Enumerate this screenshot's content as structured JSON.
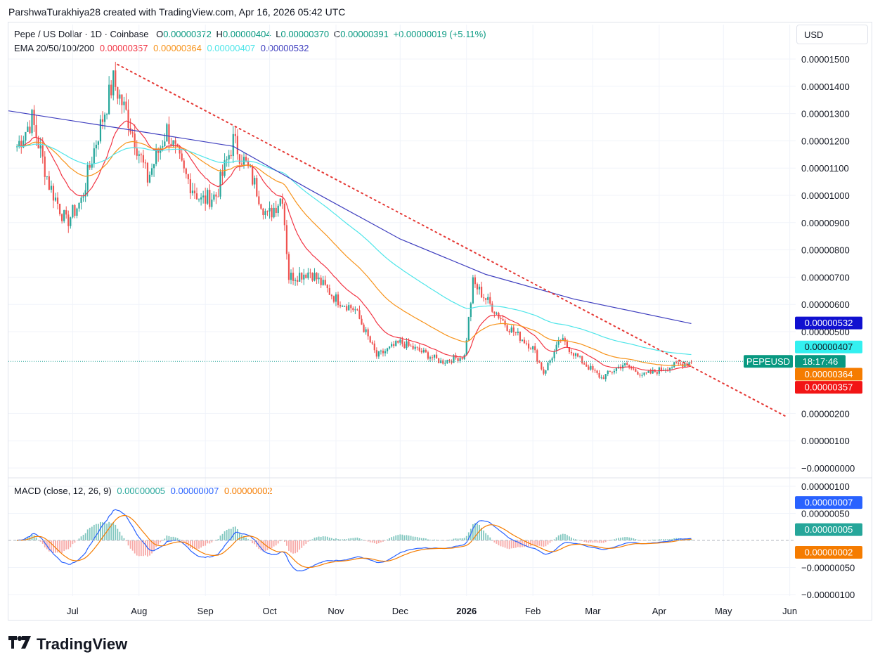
{
  "header": {
    "attribution": "ParshwaTurakhiya28 created with TradingView.com, Apr 16, 2026 05:42 UTC"
  },
  "legend": {
    "symbol": "Pepe / US Dollar · 1D · Coinbase",
    "o_label": "O",
    "o_value": "0.00000372",
    "h_label": "H",
    "h_value": "0.00000404",
    "l_label": "L",
    "l_value": "0.00000370",
    "c_label": "C",
    "c_value": "0.00000391",
    "change": "+0.00000019 (+5.11%)",
    "ema_label": "EMA 20/50/100/200",
    "ema20": "0.00000357",
    "ema50": "0.00000364",
    "ema100": "0.00000407",
    "ema200": "0.00000532",
    "macd_label": "MACD (close, 12, 26, 9)",
    "macd_hist": "0.00000005",
    "macd_line": "0.00000007",
    "macd_signal": "0.00000002"
  },
  "currency": "USD",
  "symbol_tag": "PEPEUSD",
  "countdown": "18:17:46",
  "branding": "TradingView",
  "colors": {
    "up": "#26a69a",
    "down": "#ef5350",
    "ema20": "#f23645",
    "ema50": "#f7931a",
    "ema100": "#4ee5e9",
    "ema200": "#3f3fbf",
    "macd": "#2962ff",
    "signal": "#f57c00",
    "trendline": "#e53935"
  },
  "chart_data": {
    "type": "candlestick",
    "x_axis_labels": [
      "Jul",
      "Aug",
      "Sep",
      "Oct",
      "Nov",
      "Dec",
      "2026",
      "Feb",
      "Mar",
      "Apr",
      "May",
      "Jun"
    ],
    "price_axis_labels": [
      "0.00001500",
      "0.00001400",
      "0.00001300",
      "0.00001200",
      "0.00001100",
      "0.00001000",
      "0.00000900",
      "0.00000800",
      "0.00000700",
      "0.00000600",
      "0.00000500",
      "0.00000200",
      "0.00000100",
      "−0.00000000"
    ],
    "price_ylim": [
      0,
      1.6e-05
    ],
    "price_series": {
      "close_approx": [
        [
          "2025-06-05",
          1.18e-05
        ],
        [
          "2025-06-12",
          1.28e-05
        ],
        [
          "2025-06-20",
          1.04e-05
        ],
        [
          "2025-06-28",
          9e-06
        ],
        [
          "2025-07-05",
          9.8e-06
        ],
        [
          "2025-07-12",
          1.2e-05
        ],
        [
          "2025-07-20",
          1.42e-05
        ],
        [
          "2025-07-27",
          1.28e-05
        ],
        [
          "2025-08-05",
          1.06e-05
        ],
        [
          "2025-08-14",
          1.24e-05
        ],
        [
          "2025-08-22",
          1.08e-05
        ],
        [
          "2025-08-30",
          9.8e-06
        ],
        [
          "2025-09-06",
          1e-05
        ],
        [
          "2025-09-14",
          1.2e-05
        ],
        [
          "2025-09-22",
          1.08e-05
        ],
        [
          "2025-09-30",
          9.2e-06
        ],
        [
          "2025-10-07",
          1e-05
        ],
        [
          "2025-10-10",
          7e-06
        ],
        [
          "2025-10-20",
          7.2e-06
        ],
        [
          "2025-11-01",
          6.2e-06
        ],
        [
          "2025-11-10",
          5.8e-06
        ],
        [
          "2025-11-20",
          4.1e-06
        ],
        [
          "2025-12-01",
          4.6e-06
        ],
        [
          "2025-12-10",
          4.3e-06
        ],
        [
          "2025-12-20",
          3.9e-06
        ],
        [
          "2025-12-31",
          4.1e-06
        ],
        [
          "2026-01-04",
          6.8e-06
        ],
        [
          "2026-01-12",
          6e-06
        ],
        [
          "2026-01-20",
          5.2e-06
        ],
        [
          "2026-02-01",
          4.4e-06
        ],
        [
          "2026-02-06",
          3.5e-06
        ],
        [
          "2026-02-14",
          4.7e-06
        ],
        [
          "2026-02-24",
          3.9e-06
        ],
        [
          "2026-03-05",
          3.3e-06
        ],
        [
          "2026-03-15",
          3.8e-06
        ],
        [
          "2026-03-25",
          3.4e-06
        ],
        [
          "2026-04-05",
          3.7e-06
        ],
        [
          "2026-04-16",
          3.9e-06
        ]
      ]
    },
    "ema200_approx": [
      [
        "2025-06-01",
        1.31e-05
      ],
      [
        "2025-07-20",
        1.25e-05
      ],
      [
        "2025-09-14",
        1.18e-05
      ],
      [
        "2025-10-20",
        1.02e-05
      ],
      [
        "2025-12-01",
        8.4e-06
      ],
      [
        "2026-01-10",
        7.1e-06
      ],
      [
        "2026-02-20",
        6.2e-06
      ],
      [
        "2026-04-16",
        5.3e-06
      ]
    ],
    "trendline": {
      "from": [
        "2025-07-22",
        1.48e-05
      ],
      "to": [
        "2026-05-30",
        1.9e-06
      ]
    },
    "macd_axis_labels": [
      "0.00000100",
      "0.00000050",
      "−0.00000050",
      "−0.00000100"
    ],
    "macd_ylim": [
      -1.2e-06,
      1.2e-06
    ]
  }
}
